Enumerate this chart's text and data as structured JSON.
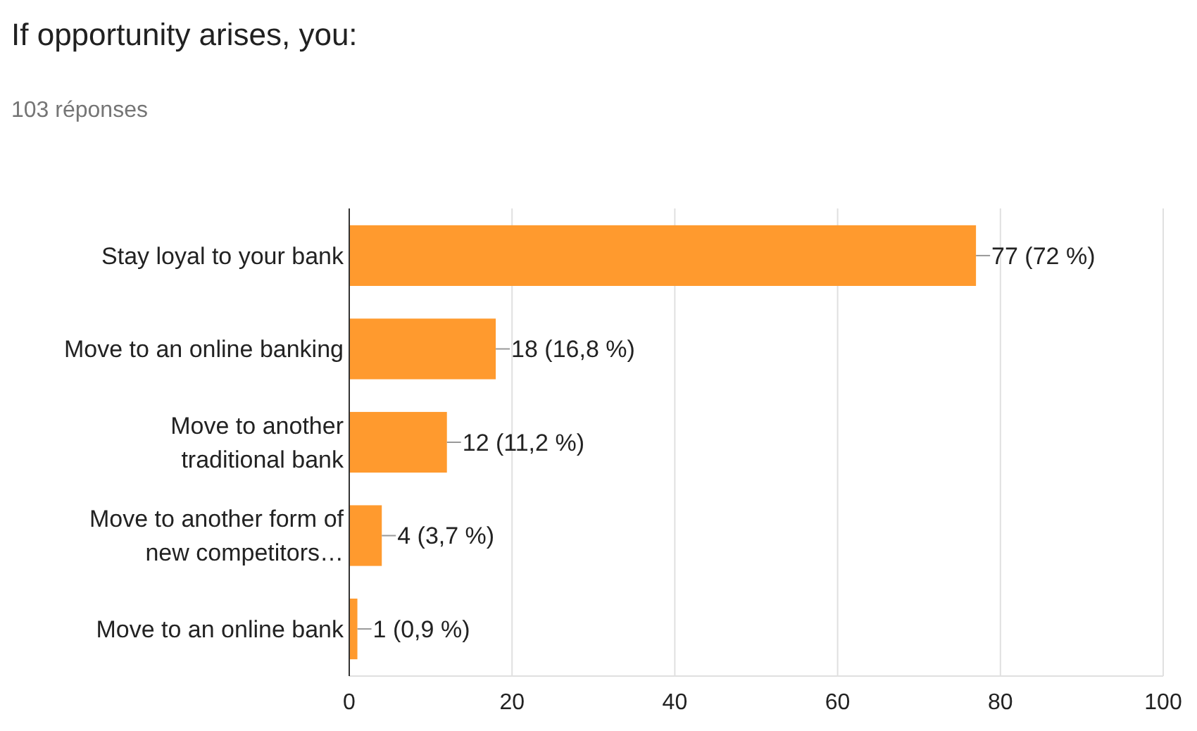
{
  "chart_data": {
    "type": "bar",
    "orientation": "horizontal",
    "title": "If opportunity arises, you:",
    "subtitle": "103 réponses",
    "categories": [
      "Stay loyal to your bank",
      "Move to an online banking",
      "Move to another traditional bank",
      "Move to another form of new competitors…",
      "Move to an online bank"
    ],
    "values": [
      77,
      18,
      12,
      4,
      1
    ],
    "value_labels": [
      "77 (72 %)",
      "18 (16,8 %)",
      "12 (11,2 %)",
      "4 (3,7 %)",
      "1 (0,9 %)"
    ],
    "color": "#ff9a2e",
    "xlim": [
      0,
      100
    ],
    "xticks": [
      0,
      20,
      40,
      60,
      80,
      100
    ],
    "grid": "x"
  }
}
